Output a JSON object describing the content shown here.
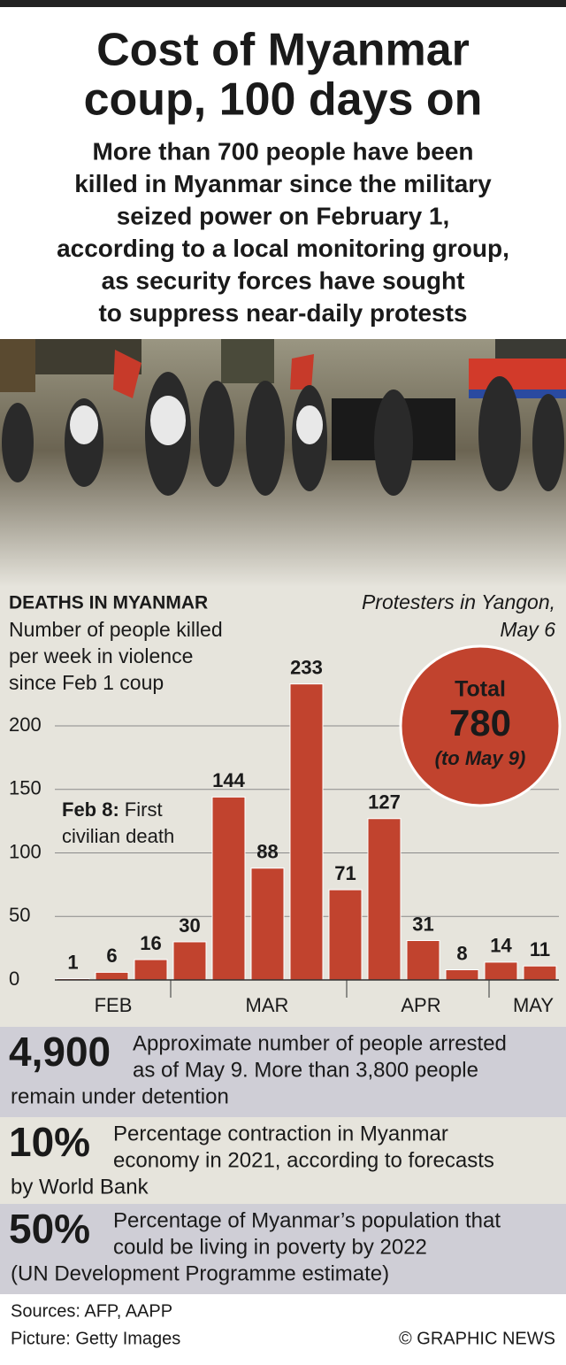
{
  "header": {
    "title": [
      "Cost of Myanmar",
      "coup, 100 days on"
    ],
    "subtitle": [
      "More than 700 people have been",
      "killed in Myanmar since the military",
      "seized power on February 1,",
      "according to a local monitoring group,",
      "as security forces have sought",
      "to suppress near-daily protests"
    ]
  },
  "photo_caption": [
    "Protesters in Yangon,",
    "May 6"
  ],
  "chart_data": {
    "type": "bar",
    "title": "DEATHS IN MYANMAR",
    "subtitle": [
      "Number of people killed",
      "per week in violence",
      "since Feb 1 coup"
    ],
    "categories": [
      null,
      null,
      null,
      null,
      null,
      null,
      null,
      null,
      null,
      null,
      null,
      null,
      null
    ],
    "values": [
      1,
      6,
      16,
      30,
      144,
      88,
      233,
      71,
      127,
      31,
      8,
      14,
      11
    ],
    "color": "#c1432e",
    "ylim": [
      0,
      240
    ],
    "yticks": [
      0,
      50,
      100,
      150,
      200
    ],
    "grid": true,
    "month_labels": [
      "FEB",
      "MAR",
      "APR",
      "MAY"
    ],
    "annotation": {
      "label": "Feb 8:",
      "text": [
        "First",
        "civilian death"
      ]
    },
    "total": {
      "label": "Total",
      "value": "780",
      "note": "(to May 9)"
    }
  },
  "stats": [
    {
      "value": "4,900",
      "lines": [
        "Approximate number of people arrested",
        "as of May 9. More than 3,800 people",
        "remain under detention"
      ]
    },
    {
      "value": "10%",
      "lines": [
        "Percentage contraction in Myanmar",
        "economy in 2021, according to forecasts",
        "by World Bank"
      ]
    },
    {
      "value": "50%",
      "lines": [
        "Percentage of Myanmar’s population that",
        "could be living in poverty by 2022",
        "(UN Development Programme estimate)"
      ]
    }
  ],
  "footer": {
    "sources": "Sources: AFP, AAPP",
    "picture": "Picture: Getty Images",
    "credit": "© GRAPHIC NEWS"
  }
}
